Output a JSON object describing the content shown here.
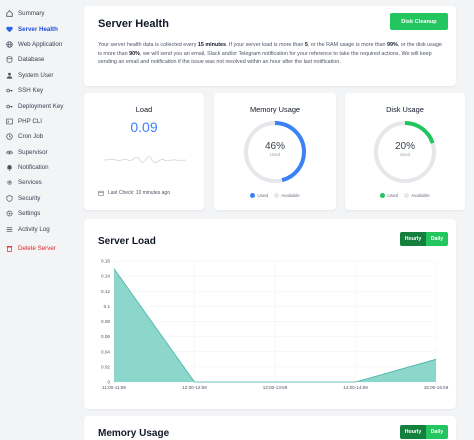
{
  "colors": {
    "accent": "#2563eb",
    "green": "#22c55e",
    "green_dark": "#15803d",
    "danger": "#dc2626",
    "chart_fill": "#7fd1c7",
    "chart_line": "#46b3a6",
    "memory_ring": "#3b82f6",
    "disk_ring": "#22c55e"
  },
  "sidebar": {
    "items": [
      {
        "label": "Summary",
        "icon": "home-icon"
      },
      {
        "label": "Server Health",
        "icon": "heart-pulse-icon",
        "active": true
      },
      {
        "label": "Web Application",
        "icon": "globe-icon"
      },
      {
        "label": "Database",
        "icon": "database-icon"
      },
      {
        "label": "System User",
        "icon": "user-icon"
      },
      {
        "label": "SSH Key",
        "icon": "key-icon"
      },
      {
        "label": "Deployment Key",
        "icon": "key-icon"
      },
      {
        "label": "PHP CLI",
        "icon": "terminal-icon"
      },
      {
        "label": "Cron Job",
        "icon": "clock-icon"
      },
      {
        "label": "Supervisor",
        "icon": "eye-icon"
      },
      {
        "label": "Notification",
        "icon": "bell-icon"
      },
      {
        "label": "Services",
        "icon": "cog-icon"
      },
      {
        "label": "Security",
        "icon": "shield-icon"
      },
      {
        "label": "Settings",
        "icon": "gear-icon"
      },
      {
        "label": "Activity Log",
        "icon": "list-icon"
      }
    ],
    "delete_label": "Delete Server"
  },
  "health": {
    "title": "Server Health",
    "cleanup_button": "Disk Cleanup",
    "desc": {
      "t1": "Your server health data is collected every ",
      "b1": "15 minutes",
      "t2": ". If your server load is more than ",
      "b2": "5",
      "t3": ", or the RAM usage is more than ",
      "b3": "99%",
      "t4": ", or the disk usage is more than ",
      "b4": "90%",
      "t5": ", we will send you an email, Slack and/or Telegram notification for your reference to take the required actions. We will keep sending an email and notification if the issue was not resolved within an hour after the last notification."
    }
  },
  "load": {
    "title": "Load",
    "value": "0.09",
    "last_check": "Last Check: 10 minutes ago"
  },
  "memory": {
    "title": "Memory Usage",
    "percent_label": "46%",
    "percent": 46,
    "sub": "Used",
    "legend_used": "Used",
    "legend_available": "Available"
  },
  "disk": {
    "title": "Disk Usage",
    "percent_label": "20%",
    "percent": 20,
    "sub": "Used",
    "legend_used": "Used",
    "legend_available": "Available"
  },
  "server_load": {
    "title": "Server Load",
    "toggle": {
      "hourly": "Hourly",
      "daily": "Daily"
    }
  },
  "memory_section": {
    "title": "Memory Usage",
    "toggle": {
      "hourly": "Hourly",
      "daily": "Daily"
    }
  },
  "chart_data": {
    "type": "area",
    "x": [
      "11:00-11:59",
      "12:00-12:59",
      "13:00-13:59",
      "14:00-14:59",
      "15:00-15:59"
    ],
    "series": [
      {
        "values": [
          0.15,
          0.0,
          0.0,
          0.0,
          0.03
        ]
      }
    ],
    "y_ticks": [
      "0.16",
      "0.14",
      "0.12",
      "0.1",
      "0.08",
      "0.06",
      "0.04",
      "0.02",
      "0"
    ],
    "ylim": [
      0,
      0.16
    ],
    "grid": true
  }
}
